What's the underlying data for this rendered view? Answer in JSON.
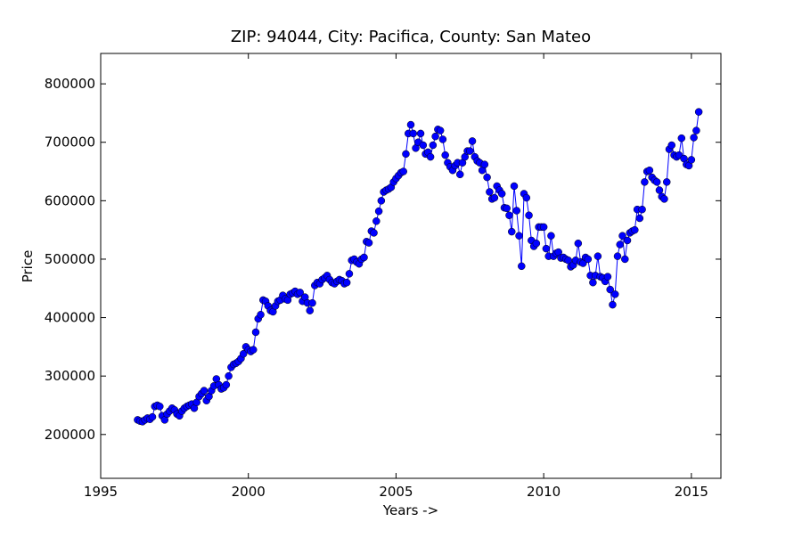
{
  "chart_data": {
    "type": "line",
    "title": "ZIP: 94044, City: Pacifica, County: San Mateo",
    "x_label": "Years ->",
    "y_label": "Price",
    "color": "#0000ff",
    "marker": "circle",
    "xlim": [
      1995,
      2016
    ],
    "ylim": [
      125000,
      852000
    ],
    "xticks": [
      1995,
      2000,
      2005,
      2010,
      2015
    ],
    "yticks": [
      200000,
      300000,
      400000,
      500000,
      600000,
      700000,
      800000
    ],
    "x": [
      1996.25,
      1996.333,
      1996.417,
      1996.5,
      1996.583,
      1996.667,
      1996.75,
      1996.833,
      1996.917,
      1997.0,
      1997.083,
      1997.167,
      1997.25,
      1997.333,
      1997.417,
      1997.5,
      1997.583,
      1997.667,
      1997.75,
      1997.833,
      1997.917,
      1998.0,
      1998.083,
      1998.167,
      1998.25,
      1998.333,
      1998.417,
      1998.5,
      1998.583,
      1998.667,
      1998.75,
      1998.833,
      1998.917,
      1999.0,
      1999.083,
      1999.167,
      1999.25,
      1999.333,
      1999.417,
      1999.5,
      1999.583,
      1999.667,
      1999.75,
      1999.833,
      1999.917,
      2000.0,
      2000.083,
      2000.167,
      2000.25,
      2000.333,
      2000.417,
      2000.5,
      2000.583,
      2000.667,
      2000.75,
      2000.833,
      2000.917,
      2001.0,
      2001.083,
      2001.167,
      2001.25,
      2001.333,
      2001.417,
      2001.5,
      2001.583,
      2001.667,
      2001.75,
      2001.833,
      2001.917,
      2002.0,
      2002.083,
      2002.167,
      2002.25,
      2002.333,
      2002.417,
      2002.5,
      2002.583,
      2002.667,
      2002.75,
      2002.833,
      2002.917,
      2003.0,
      2003.083,
      2003.167,
      2003.25,
      2003.333,
      2003.417,
      2003.5,
      2003.583,
      2003.667,
      2003.75,
      2003.833,
      2003.917,
      2004.0,
      2004.083,
      2004.167,
      2004.25,
      2004.333,
      2004.417,
      2004.5,
      2004.583,
      2004.667,
      2004.75,
      2004.833,
      2004.917,
      2005.0,
      2005.083,
      2005.167,
      2005.25,
      2005.333,
      2005.417,
      2005.5,
      2005.583,
      2005.667,
      2005.75,
      2005.833,
      2005.917,
      2006.0,
      2006.083,
      2006.167,
      2006.25,
      2006.333,
      2006.417,
      2006.5,
      2006.583,
      2006.667,
      2006.75,
      2006.833,
      2006.917,
      2007.0,
      2007.083,
      2007.167,
      2007.25,
      2007.333,
      2007.417,
      2007.5,
      2007.583,
      2007.667,
      2007.75,
      2007.833,
      2007.917,
      2008.0,
      2008.083,
      2008.167,
      2008.25,
      2008.333,
      2008.417,
      2008.5,
      2008.583,
      2008.667,
      2008.75,
      2008.833,
      2008.917,
      2009.0,
      2009.083,
      2009.167,
      2009.25,
      2009.333,
      2009.417,
      2009.5,
      2009.583,
      2009.667,
      2009.75,
      2009.833,
      2009.917,
      2010.0,
      2010.083,
      2010.167,
      2010.25,
      2010.333,
      2010.417,
      2010.5,
      2010.583,
      2010.667,
      2010.75,
      2010.833,
      2010.917,
      2011.0,
      2011.083,
      2011.167,
      2011.25,
      2011.333,
      2011.417,
      2011.5,
      2011.583,
      2011.667,
      2011.75,
      2011.833,
      2011.917,
      2012.0,
      2012.083,
      2012.167,
      2012.25,
      2012.333,
      2012.417,
      2012.5,
      2012.583,
      2012.667,
      2012.75,
      2012.833,
      2012.917,
      2013.0,
      2013.083,
      2013.167,
      2013.25,
      2013.333,
      2013.417,
      2013.5,
      2013.583,
      2013.667,
      2013.75,
      2013.833,
      2013.917,
      2014.0,
      2014.083,
      2014.167,
      2014.25,
      2014.333,
      2014.417,
      2014.5,
      2014.583,
      2014.667,
      2014.75,
      2014.833,
      2014.917,
      2015.0,
      2015.083,
      2015.167,
      2015.25
    ],
    "values": [
      225000,
      223000,
      222000,
      225000,
      228000,
      226000,
      230000,
      248000,
      250000,
      248000,
      232000,
      225000,
      235000,
      240000,
      245000,
      242000,
      235000,
      232000,
      240000,
      245000,
      248000,
      250000,
      252000,
      245000,
      255000,
      265000,
      270000,
      275000,
      258000,
      265000,
      275000,
      283000,
      295000,
      285000,
      278000,
      280000,
      285000,
      300000,
      315000,
      320000,
      322000,
      325000,
      330000,
      338000,
      350000,
      345000,
      342000,
      345000,
      375000,
      398000,
      405000,
      430000,
      428000,
      420000,
      412000,
      410000,
      420000,
      428000,
      430000,
      438000,
      432000,
      430000,
      440000,
      442000,
      445000,
      440000,
      443000,
      428000,
      435000,
      425000,
      412000,
      425000,
      455000,
      460000,
      458000,
      465000,
      468000,
      472000,
      465000,
      460000,
      458000,
      462000,
      465000,
      463000,
      458000,
      460000,
      475000,
      498000,
      500000,
      495000,
      492000,
      500000,
      503000,
      530000,
      528000,
      548000,
      545000,
      565000,
      582000,
      600000,
      615000,
      618000,
      620000,
      623000,
      632000,
      638000,
      643000,
      648000,
      650000,
      680000,
      715000,
      730000,
      715000,
      690000,
      700000,
      715000,
      695000,
      680000,
      683000,
      675000,
      695000,
      710000,
      722000,
      720000,
      705000,
      678000,
      665000,
      658000,
      652000,
      660000,
      665000,
      645000,
      665000,
      675000,
      685000,
      685000,
      702000,
      675000,
      668000,
      665000,
      652000,
      662000,
      640000,
      615000,
      603000,
      605000,
      625000,
      618000,
      612000,
      588000,
      587000,
      575000,
      547000,
      625000,
      583000,
      540000,
      488000,
      612000,
      605000,
      575000,
      532000,
      522000,
      527000,
      555000,
      555000,
      555000,
      518000,
      505000,
      540000,
      505000,
      510000,
      512000,
      502000,
      503000,
      500000,
      498000,
      487000,
      490000,
      498000,
      527000,
      495000,
      493000,
      503000,
      500000,
      472000,
      460000,
      472000,
      505000,
      470000,
      468000,
      462000,
      470000,
      448000,
      422000,
      440000,
      505000,
      525000,
      540000,
      500000,
      532000,
      545000,
      548000,
      550000,
      585000,
      570000,
      585000,
      632000,
      650000,
      652000,
      640000,
      635000,
      632000,
      618000,
      607000,
      603000,
      632000,
      688000,
      695000,
      678000,
      675000,
      678000,
      707000,
      672000,
      662000,
      660000,
      670000,
      708000,
      720000,
      752000
    ]
  }
}
